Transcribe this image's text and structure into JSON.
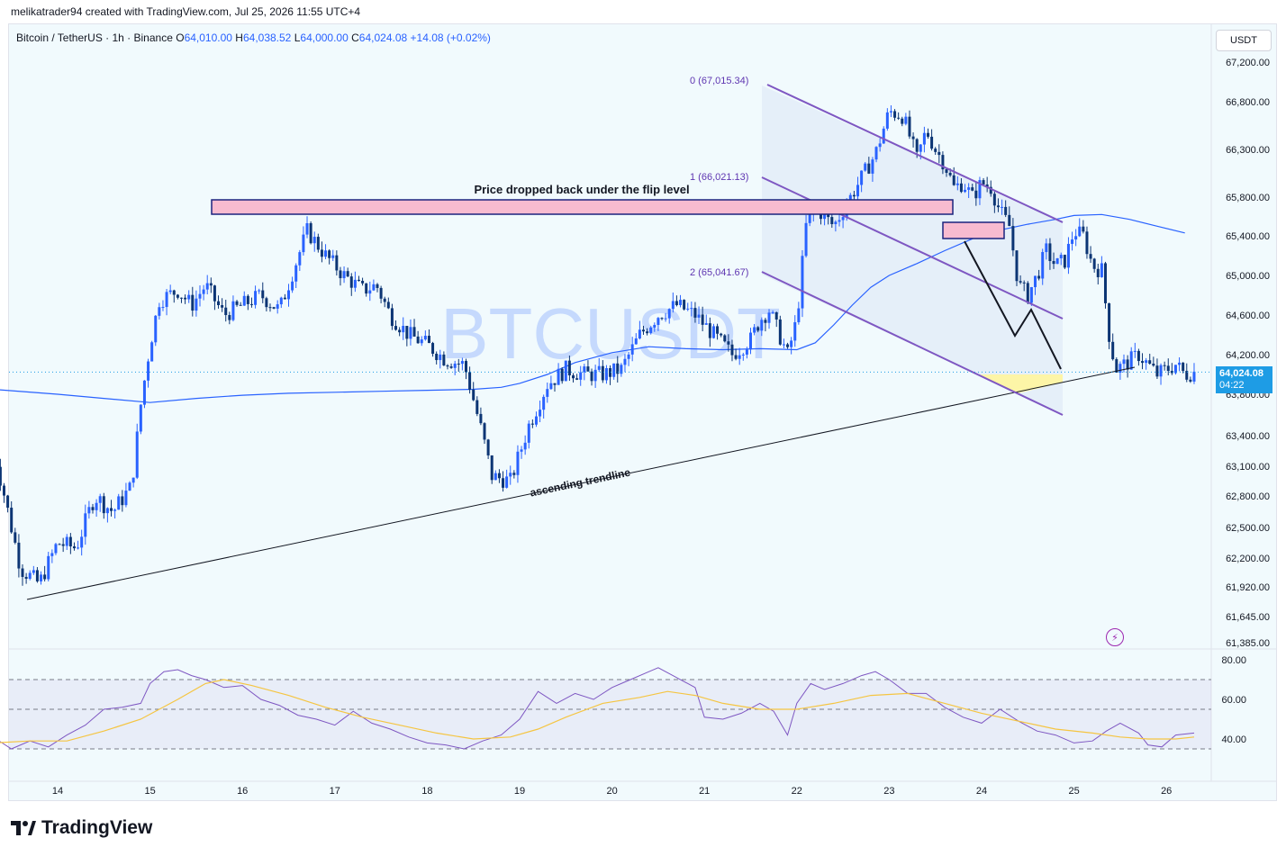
{
  "header": {
    "creator_line": "melikatrader94 created with TradingView.com, Jul 25, 2026 11:55 UTC+4"
  },
  "ohlc": {
    "symbol": "Bitcoin / TetherUS · 1h · Binance",
    "o_label": "O",
    "o_value": "64,010.00",
    "h_label": "H",
    "h_value": "64,038.52",
    "l_label": "L",
    "l_value": "64,000.00",
    "c_label": "C",
    "c_value": "64,024.08",
    "change": "+14.08 (+0.02%)"
  },
  "currency_button": "USDT",
  "watermark": "BTCUSDT",
  "last_price": {
    "value": "64,024.08",
    "countdown": "04:22"
  },
  "brand": "TradingView",
  "colors": {
    "up": "#2962ff",
    "down": "#0c3574",
    "ma": "#2962ff",
    "channel": "#7e57c2",
    "zone_fill": "#f8bbd0",
    "zone_border": "#1a237e",
    "rsi_line": "#7e57c2",
    "rsi_ma": "#f5c542",
    "price_tag": "#1e9ce5"
  },
  "icons": [
    "tradingview-logo-icon",
    "lightning-icon"
  ],
  "chart_data": [
    {
      "type": "candlestick",
      "symbol": "Bitcoin / TetherUS",
      "interval": "1h",
      "x_tick_labels": [
        "14",
        "15",
        "16",
        "17",
        "18",
        "19",
        "20",
        "21",
        "22",
        "23",
        "24",
        "25",
        "26"
      ],
      "y_tick_labels": [
        "67,200.00",
        "66,800.00",
        "66,300.00",
        "65,800.00",
        "65,400.00",
        "65,000.00",
        "64,600.00",
        "64,200.00",
        "63,800.00",
        "63,400.00",
        "63,100.00",
        "62,800.00",
        "62,500.00",
        "62,200.00",
        "61,920.00",
        "61,645.00",
        "61,385.00"
      ],
      "y_tick_values": [
        67200,
        66800,
        66300,
        65800,
        65400,
        65000,
        64600,
        64200,
        63800,
        63400,
        63100,
        62800,
        62500,
        62200,
        61920,
        61645,
        61385
      ],
      "close_path": [
        [
          13.3,
          63300
        ],
        [
          13.6,
          62100
        ],
        [
          13.8,
          61950
        ],
        [
          14.0,
          62350
        ],
        [
          14.2,
          62300
        ],
        [
          14.4,
          62800
        ],
        [
          14.6,
          62650
        ],
        [
          14.8,
          62900
        ],
        [
          14.9,
          63700
        ],
        [
          15.0,
          64300
        ],
        [
          15.1,
          64750
        ],
        [
          15.3,
          64850
        ],
        [
          15.45,
          64700
        ],
        [
          15.6,
          64900
        ],
        [
          15.8,
          64600
        ],
        [
          16.0,
          64700
        ],
        [
          16.2,
          64800
        ],
        [
          16.4,
          64650
        ],
        [
          16.7,
          65450
        ],
        [
          16.9,
          65200
        ],
        [
          17.1,
          65000
        ],
        [
          17.3,
          64850
        ],
        [
          17.45,
          64900
        ],
        [
          17.6,
          64600
        ],
        [
          17.8,
          64400
        ],
        [
          18.0,
          64300
        ],
        [
          18.2,
          64150
        ],
        [
          18.4,
          64100
        ],
        [
          18.6,
          63400
        ],
        [
          18.7,
          63000
        ],
        [
          18.9,
          62950
        ],
        [
          19.1,
          63500
        ],
        [
          19.3,
          63900
        ],
        [
          19.5,
          64050
        ],
        [
          19.7,
          64000
        ],
        [
          19.9,
          64000
        ],
        [
          20.1,
          64050
        ],
        [
          20.3,
          64400
        ],
        [
          20.5,
          64600
        ],
        [
          20.7,
          64700
        ],
        [
          20.9,
          64600
        ],
        [
          21.1,
          64400
        ],
        [
          21.3,
          64200
        ],
        [
          21.5,
          64350
        ],
        [
          21.6,
          64550
        ],
        [
          21.7,
          64650
        ],
        [
          21.9,
          64200
        ],
        [
          22.0,
          64550
        ],
        [
          22.1,
          65500
        ],
        [
          22.2,
          65700
        ],
        [
          22.4,
          65500
        ],
        [
          22.55,
          65750
        ],
        [
          22.7,
          66000
        ],
        [
          22.85,
          66250
        ],
        [
          23.0,
          66700
        ],
        [
          23.15,
          66650
        ],
        [
          23.3,
          66200
        ],
        [
          23.4,
          66500
        ],
        [
          23.5,
          66300
        ],
        [
          23.6,
          66150
        ],
        [
          23.7,
          65900
        ],
        [
          23.8,
          65950
        ],
        [
          23.9,
          65800
        ],
        [
          24.0,
          65950
        ],
        [
          24.1,
          65900
        ],
        [
          24.2,
          65650
        ],
        [
          24.3,
          65500
        ],
        [
          24.4,
          64900
        ],
        [
          24.5,
          64800
        ],
        [
          24.6,
          65000
        ],
        [
          24.7,
          65250
        ],
        [
          24.8,
          65100
        ],
        [
          24.9,
          65150
        ],
        [
          25.0,
          65450
        ],
        [
          25.1,
          65400
        ],
        [
          25.2,
          65100
        ],
        [
          25.3,
          65050
        ],
        [
          25.38,
          64400
        ],
        [
          25.45,
          64050
        ],
        [
          25.55,
          64100
        ],
        [
          25.7,
          64200
        ],
        [
          25.8,
          64100
        ],
        [
          25.9,
          64000
        ],
        [
          26.0,
          64050
        ],
        [
          26.1,
          64100
        ],
        [
          26.2,
          64000
        ],
        [
          26.3,
          64024.08
        ]
      ],
      "moving_average_path": [
        [
          13.3,
          63850
        ],
        [
          14.0,
          63800
        ],
        [
          14.5,
          63760
        ],
        [
          15.0,
          63720
        ],
        [
          15.5,
          63760
        ],
        [
          16.0,
          63790
        ],
        [
          16.5,
          63810
        ],
        [
          17.0,
          63820
        ],
        [
          17.5,
          63830
        ],
        [
          18.0,
          63840
        ],
        [
          18.5,
          63850
        ],
        [
          18.8,
          63870
        ],
        [
          19.0,
          63910
        ],
        [
          19.3,
          64000
        ],
        [
          19.6,
          64120
        ],
        [
          20.0,
          64220
        ],
        [
          20.4,
          64280
        ],
        [
          20.8,
          64260
        ],
        [
          21.2,
          64250
        ],
        [
          21.6,
          64260
        ],
        [
          22.0,
          64250
        ],
        [
          22.2,
          64320
        ],
        [
          22.4,
          64500
        ],
        [
          22.6,
          64700
        ],
        [
          22.8,
          64880
        ],
        [
          23.0,
          65000
        ],
        [
          23.3,
          65120
        ],
        [
          23.6,
          65250
        ],
        [
          23.9,
          65370
        ],
        [
          24.2,
          65460
        ],
        [
          24.5,
          65520
        ],
        [
          24.8,
          65570
        ],
        [
          25.0,
          65610
        ],
        [
          25.3,
          65620
        ],
        [
          25.6,
          65570
        ],
        [
          25.9,
          65500
        ],
        [
          26.2,
          65430
        ]
      ],
      "last_price": 64024.08,
      "annotations": [
        {
          "label": "Price dropped back under the flip level",
          "type": "supply_zone",
          "y_range": [
            65660,
            65810
          ]
        },
        {
          "label": "ascending trendline",
          "type": "trendline"
        },
        {
          "label": "0 (67,015.34)",
          "type": "fib_level",
          "value": 67015.34
        },
        {
          "label": "1 (66,021.13)",
          "type": "fib_level",
          "value": 66021.13
        },
        {
          "label": "2 (65,041.67)",
          "type": "fib_level",
          "value": 65041.67
        }
      ]
    },
    {
      "type": "line",
      "name": "RSI",
      "y_tick_labels": [
        "80.00",
        "60.00",
        "40.00"
      ],
      "y_tick_values": [
        80,
        60,
        40
      ],
      "bands": [
        35,
        55,
        70
      ],
      "rsi_path": [
        [
          13.3,
          41
        ],
        [
          13.5,
          35
        ],
        [
          13.7,
          39
        ],
        [
          13.9,
          36
        ],
        [
          14.1,
          42
        ],
        [
          14.3,
          47
        ],
        [
          14.5,
          55
        ],
        [
          14.7,
          56
        ],
        [
          14.9,
          58
        ],
        [
          15.0,
          68
        ],
        [
          15.15,
          74
        ],
        [
          15.3,
          75
        ],
        [
          15.45,
          72
        ],
        [
          15.6,
          70
        ],
        [
          15.8,
          66
        ],
        [
          16.0,
          67
        ],
        [
          16.2,
          60
        ],
        [
          16.4,
          57
        ],
        [
          16.6,
          52
        ],
        [
          16.8,
          50
        ],
        [
          17.0,
          47
        ],
        [
          17.2,
          54
        ],
        [
          17.4,
          48
        ],
        [
          17.6,
          45
        ],
        [
          17.8,
          41
        ],
        [
          18.0,
          38
        ],
        [
          18.2,
          37
        ],
        [
          18.4,
          35
        ],
        [
          18.6,
          39
        ],
        [
          18.8,
          42
        ],
        [
          19.0,
          50
        ],
        [
          19.2,
          64
        ],
        [
          19.4,
          58
        ],
        [
          19.6,
          63
        ],
        [
          19.8,
          60
        ],
        [
          20.0,
          66
        ],
        [
          20.2,
          70
        ],
        [
          20.4,
          74
        ],
        [
          20.5,
          76
        ],
        [
          20.7,
          71
        ],
        [
          20.9,
          66
        ],
        [
          21.0,
          51
        ],
        [
          21.2,
          50
        ],
        [
          21.4,
          53
        ],
        [
          21.6,
          58
        ],
        [
          21.75,
          54
        ],
        [
          21.9,
          42
        ],
        [
          22.0,
          58
        ],
        [
          22.15,
          68
        ],
        [
          22.3,
          65
        ],
        [
          22.5,
          68
        ],
        [
          22.7,
          72
        ],
        [
          22.85,
          74
        ],
        [
          23.0,
          70
        ],
        [
          23.2,
          63
        ],
        [
          23.4,
          63
        ],
        [
          23.6,
          56
        ],
        [
          23.8,
          51
        ],
        [
          24.0,
          48
        ],
        [
          24.2,
          55
        ],
        [
          24.4,
          49
        ],
        [
          24.6,
          44
        ],
        [
          24.8,
          42
        ],
        [
          25.0,
          38
        ],
        [
          25.2,
          39
        ],
        [
          25.35,
          44
        ],
        [
          25.5,
          48
        ],
        [
          25.7,
          43
        ],
        [
          25.8,
          37
        ],
        [
          25.95,
          36
        ],
        [
          26.1,
          42
        ],
        [
          26.3,
          43
        ]
      ],
      "rsi_ma_path": [
        [
          13.3,
          38
        ],
        [
          13.7,
          39
        ],
        [
          14.1,
          39
        ],
        [
          14.5,
          44
        ],
        [
          14.9,
          50
        ],
        [
          15.3,
          60
        ],
        [
          15.6,
          68
        ],
        [
          15.8,
          70
        ],
        [
          16.1,
          67
        ],
        [
          16.5,
          62
        ],
        [
          16.9,
          56
        ],
        [
          17.3,
          51
        ],
        [
          17.7,
          47
        ],
        [
          18.1,
          43
        ],
        [
          18.5,
          40
        ],
        [
          18.9,
          41
        ],
        [
          19.2,
          45
        ],
        [
          19.5,
          51
        ],
        [
          19.9,
          58
        ],
        [
          20.3,
          61
        ],
        [
          20.6,
          64
        ],
        [
          20.9,
          62
        ],
        [
          21.2,
          58
        ],
        [
          21.6,
          55
        ],
        [
          22.0,
          55
        ],
        [
          22.4,
          58
        ],
        [
          22.8,
          62
        ],
        [
          23.2,
          63
        ],
        [
          23.6,
          58
        ],
        [
          24.0,
          53
        ],
        [
          24.4,
          49
        ],
        [
          24.8,
          45
        ],
        [
          25.2,
          43
        ],
        [
          25.5,
          41
        ],
        [
          25.8,
          40
        ],
        [
          26.1,
          40
        ],
        [
          26.3,
          41
        ]
      ]
    }
  ]
}
